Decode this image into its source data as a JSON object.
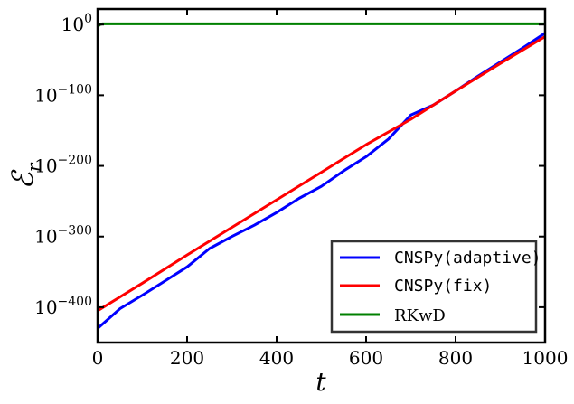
{
  "chart_data": {
    "type": "line",
    "xlabel": "t",
    "ylabel": "ℰ",
    "ylabel_sub": "r",
    "xlim": [
      0,
      1000
    ],
    "ylim_log10": [
      -450,
      22
    ],
    "yscale": "log",
    "grid": false,
    "legend_position": "lower-right",
    "x_ticks": [
      {
        "value": 0,
        "label": "0"
      },
      {
        "value": 200,
        "label": "200"
      },
      {
        "value": 400,
        "label": "400"
      },
      {
        "value": 600,
        "label": "600"
      },
      {
        "value": 800,
        "label": "800"
      },
      {
        "value": 1000,
        "label": "1000"
      }
    ],
    "y_ticks": [
      {
        "log10": 0,
        "base": "10",
        "exp": "0"
      },
      {
        "log10": -100,
        "base": "10",
        "exp": "−100"
      },
      {
        "log10": -200,
        "base": "10",
        "exp": "−200"
      },
      {
        "log10": -300,
        "base": "10",
        "exp": "−300"
      },
      {
        "log10": -400,
        "base": "10",
        "exp": "−400"
      }
    ],
    "series": [
      {
        "name": "CNSPy(adaptive)",
        "color": "#0000ff",
        "x": [
          0,
          50,
          100,
          150,
          200,
          250,
          300,
          350,
          400,
          450,
          500,
          550,
          600,
          650,
          700,
          750,
          800,
          850,
          900,
          950,
          1000
        ],
        "log10_y": [
          -430,
          -402,
          -383,
          -363,
          -343,
          -317,
          -300,
          -284,
          -266,
          -246,
          -229,
          -207,
          -187,
          -162,
          -128,
          -114,
          -94,
          -73,
          -53,
          -33,
          -12
        ]
      },
      {
        "name": "CNSPy(fix)",
        "color": "#ff0000",
        "x": [
          0,
          100,
          200,
          300,
          400,
          500,
          600,
          700,
          800,
          900,
          1000
        ],
        "log10_y": [
          -405,
          -366,
          -326,
          -287,
          -248,
          -209,
          -170,
          -134,
          -94,
          -55,
          -17
        ]
      },
      {
        "name": "RKwD",
        "color": "#008000",
        "x": [
          0,
          5,
          10,
          20,
          50,
          100,
          200,
          300,
          400,
          500,
          600,
          700,
          800,
          900,
          1000
        ],
        "log10_y": [
          -3,
          0,
          1,
          1,
          1,
          1,
          1,
          1,
          1,
          1,
          1,
          1,
          1,
          1,
          1
        ]
      }
    ]
  }
}
